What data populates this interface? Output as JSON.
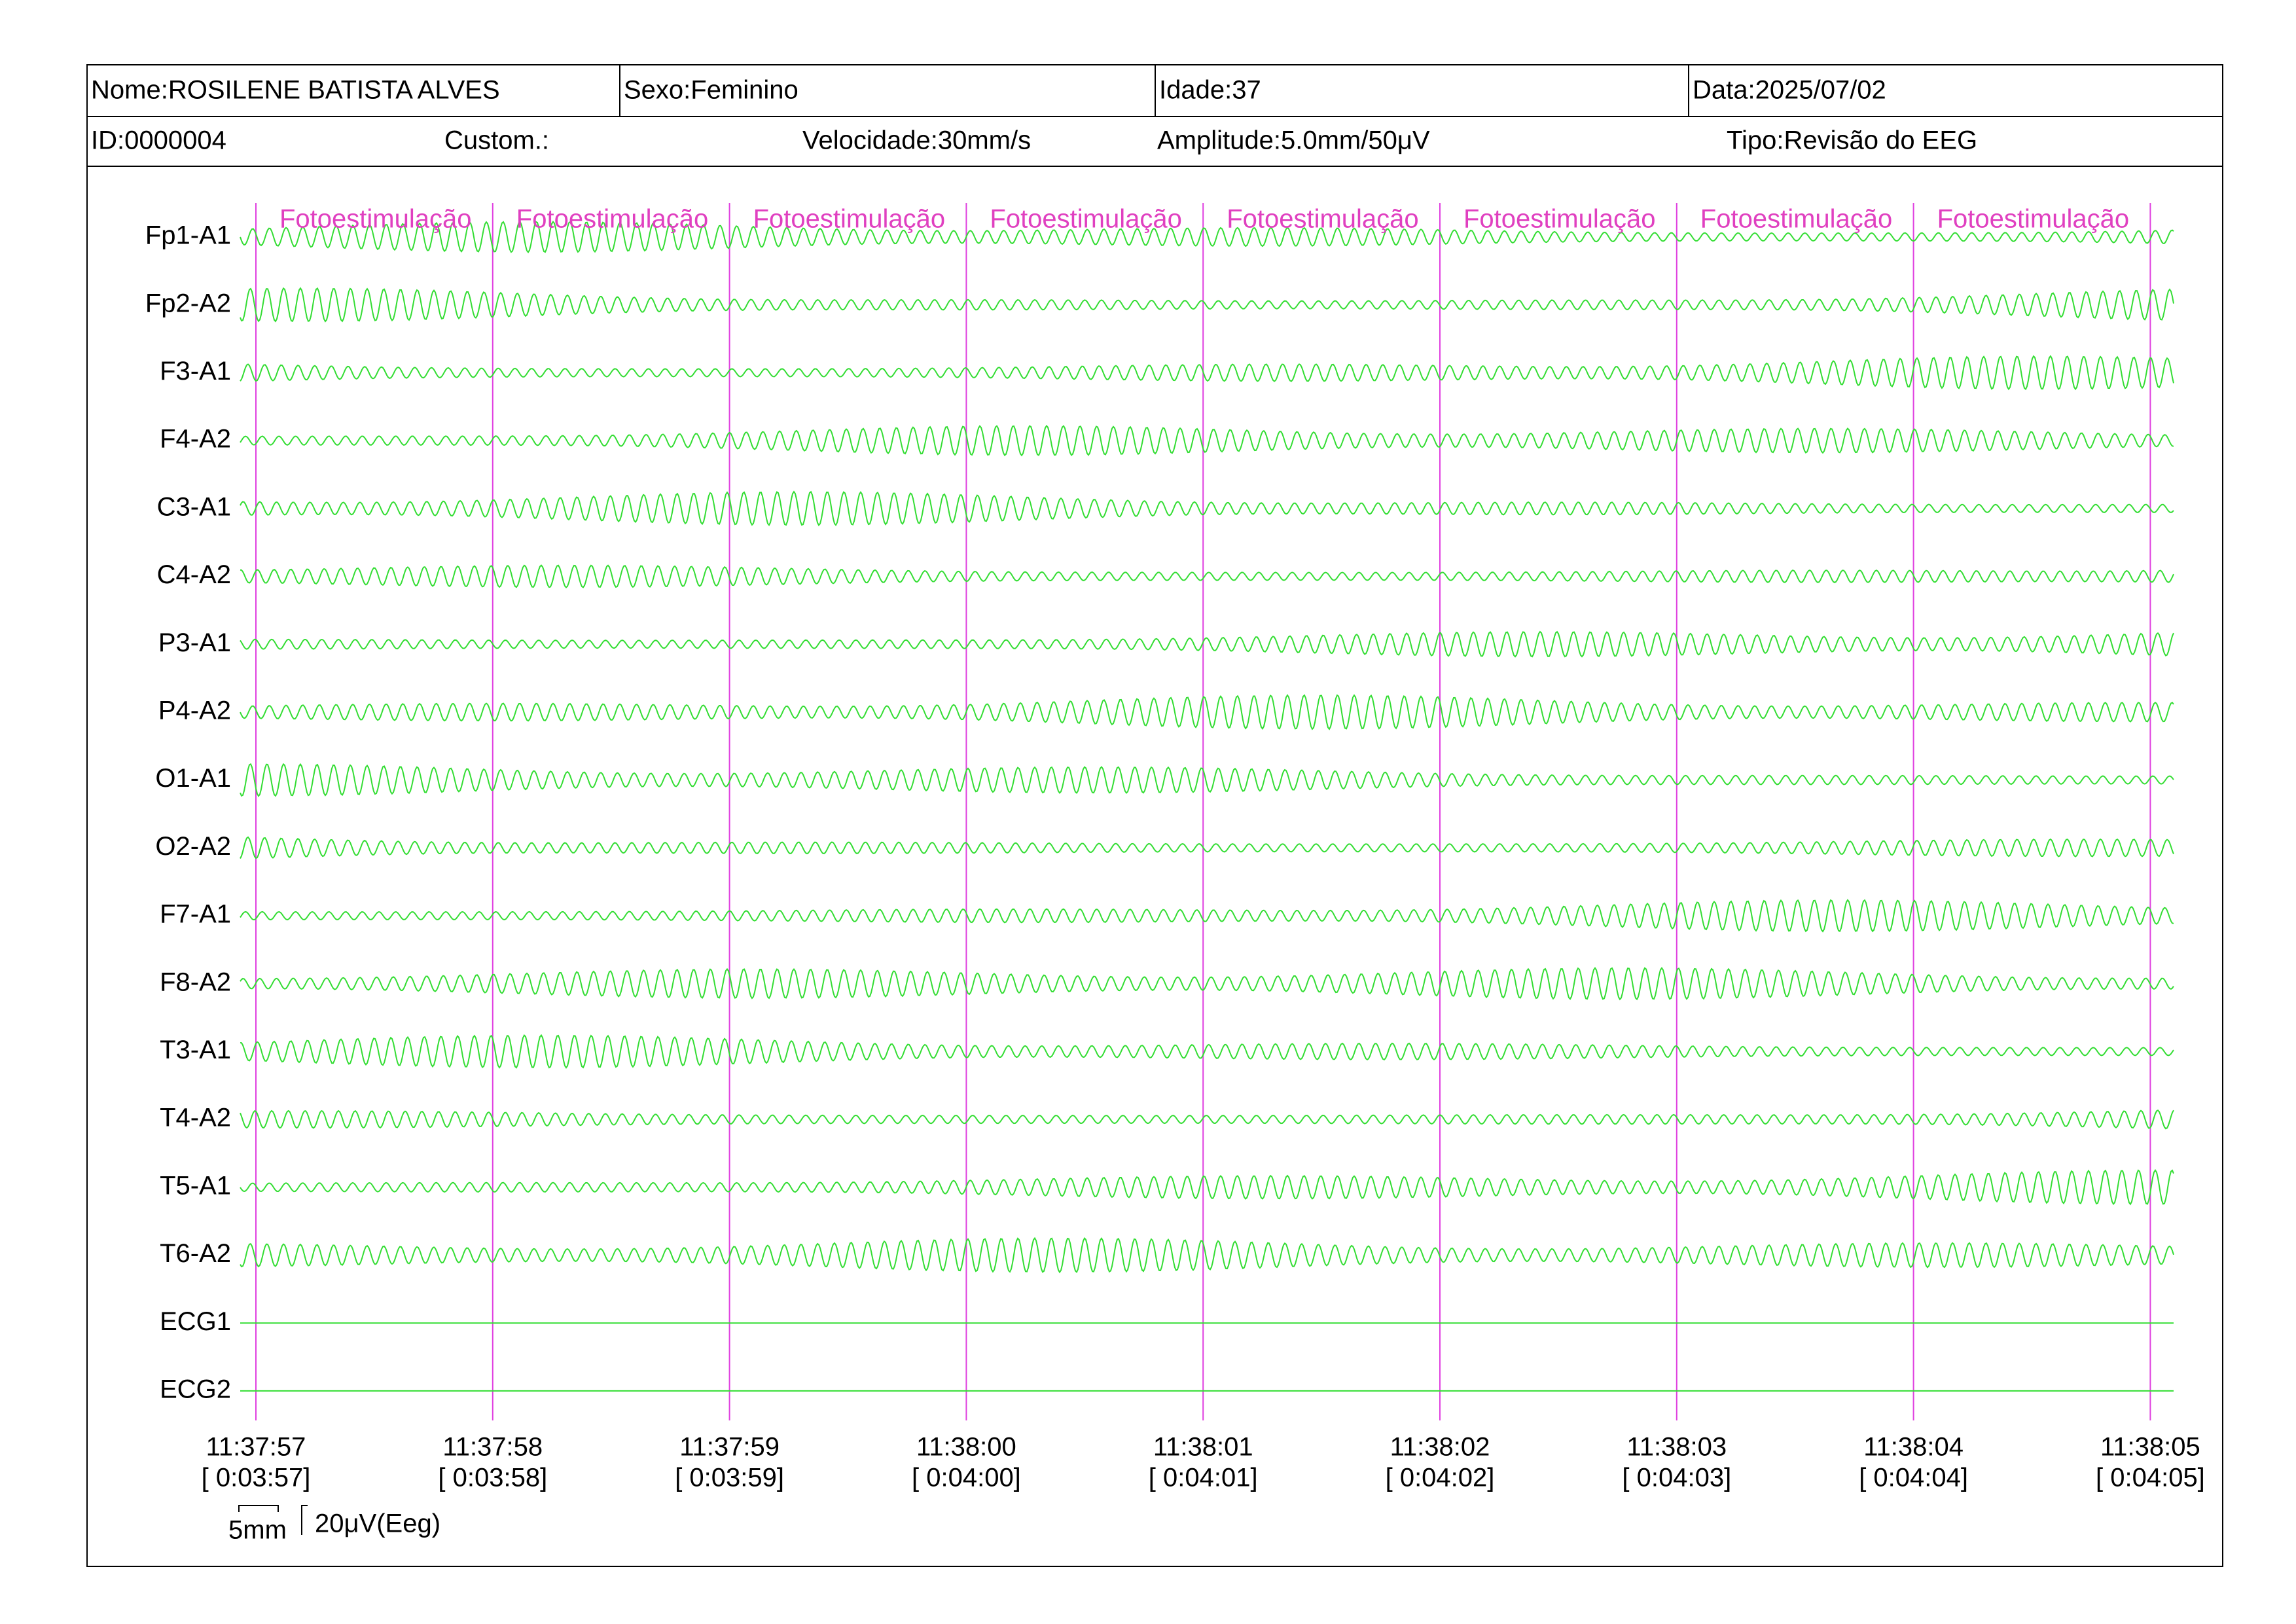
{
  "header": {
    "name": "Nome:ROSILENE BATISTA ALVES",
    "sex": "Sexo:Feminino",
    "age": "Idade:37",
    "date": "Data:2025/07/02",
    "id": "ID:0000004",
    "custom": "Custom.:",
    "speed": "Velocidade:30mm/s",
    "amplitude": "Amplitude:5.0mm/50μV",
    "type": "Tipo:Revisão do EEG"
  },
  "channels": [
    "Fp1-A1",
    "Fp2-A2",
    "F3-A1",
    "F4-A2",
    "C3-A1",
    "C4-A2",
    "P3-A1",
    "P4-A2",
    "O1-A1",
    "O2-A2",
    "F7-A1",
    "F8-A2",
    "T3-A1",
    "T4-A2",
    "T5-A1",
    "T6-A2",
    "ECG1",
    "ECG2"
  ],
  "annotations": [
    "Fotoestimulação",
    "Fotoestimulação",
    "Fotoestimulação",
    "Fotoestimulação",
    "Fotoestimulação",
    "Fotoestimulação",
    "Fotoestimulação",
    "Fotoestimulação"
  ],
  "time_marks": [
    {
      "clock": "11:37:57",
      "elapsed": "[ 0:03:57]"
    },
    {
      "clock": "11:37:58",
      "elapsed": "[ 0:03:58]"
    },
    {
      "clock": "11:37:59",
      "elapsed": "[ 0:03:59]"
    },
    {
      "clock": "11:38:00",
      "elapsed": "[ 0:04:00]"
    },
    {
      "clock": "11:38:01",
      "elapsed": "[ 0:04:01]"
    },
    {
      "clock": "11:38:02",
      "elapsed": "[ 0:04:02]"
    },
    {
      "clock": "11:38:03",
      "elapsed": "[ 0:04:03]"
    },
    {
      "clock": "11:38:04",
      "elapsed": "[ 0:04:04]"
    },
    {
      "clock": "11:38:05",
      "elapsed": "[ 0:04:05]"
    }
  ],
  "scale": {
    "time": "5mm",
    "amplitude": "20μV(Eeg)"
  }
}
